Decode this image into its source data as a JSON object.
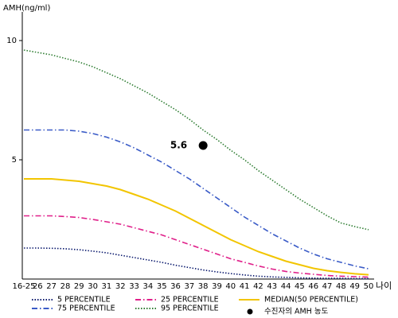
{
  "chart_data": {
    "type": "line",
    "y_label": "AMH(ng/ml)",
    "x_label": "나이",
    "categories": [
      "16-25",
      "26",
      "27",
      "28",
      "29",
      "30",
      "31",
      "32",
      "33",
      "34",
      "35",
      "36",
      "37",
      "38",
      "39",
      "40",
      "41",
      "42",
      "43",
      "44",
      "45",
      "46",
      "47",
      "48",
      "49",
      "50"
    ],
    "ylim": [
      0,
      11.2
    ],
    "yticks": [
      5,
      10
    ],
    "series": [
      {
        "name": "5 PERCENTILE",
        "color": "#0b1a6e",
        "dash": "dotted",
        "values": [
          1.3,
          1.3,
          1.29,
          1.27,
          1.23,
          1.17,
          1.1,
          1.0,
          0.9,
          0.8,
          0.7,
          0.58,
          0.48,
          0.38,
          0.3,
          0.23,
          0.17,
          0.12,
          0.09,
          0.07,
          0.05,
          0.04,
          0.03,
          0.03,
          0.02,
          0.02
        ]
      },
      {
        "name": "75 PERCENTILE",
        "color": "#3a5bc7",
        "dash": "dashdot",
        "values": [
          6.25,
          6.25,
          6.25,
          6.25,
          6.2,
          6.1,
          5.95,
          5.75,
          5.5,
          5.2,
          4.9,
          4.55,
          4.2,
          3.8,
          3.4,
          3.0,
          2.6,
          2.25,
          1.9,
          1.6,
          1.3,
          1.05,
          0.85,
          0.7,
          0.55,
          0.43
        ]
      },
      {
        "name": "25 PERCENTILE",
        "color": "#e0208a",
        "dash": "dashdot",
        "values": [
          2.65,
          2.65,
          2.65,
          2.62,
          2.58,
          2.5,
          2.4,
          2.3,
          2.15,
          2.0,
          1.85,
          1.65,
          1.45,
          1.25,
          1.05,
          0.85,
          0.7,
          0.55,
          0.42,
          0.32,
          0.25,
          0.2,
          0.15,
          0.12,
          0.1,
          0.08
        ]
      },
      {
        "name": "95 PERCENTILE",
        "color": "#2e7d32",
        "dash": "dotted",
        "values": [
          9.6,
          9.5,
          9.4,
          9.25,
          9.1,
          8.9,
          8.65,
          8.4,
          8.1,
          7.8,
          7.45,
          7.1,
          6.7,
          6.25,
          5.85,
          5.4,
          5.0,
          4.55,
          4.15,
          3.75,
          3.35,
          3.0,
          2.65,
          2.35,
          2.2,
          2.07
        ]
      },
      {
        "name": "MEDIAN(50 PERCENTILE)",
        "color": "#f2c500",
        "dash": "solid",
        "values": [
          4.2,
          4.2,
          4.2,
          4.15,
          4.1,
          4.0,
          3.9,
          3.75,
          3.55,
          3.35,
          3.1,
          2.85,
          2.55,
          2.25,
          1.95,
          1.65,
          1.4,
          1.15,
          0.95,
          0.75,
          0.6,
          0.45,
          0.35,
          0.28,
          0.22,
          0.18
        ]
      },
      {
        "name": "수진자의 AMH 농도",
        "color": "#000000",
        "dash": "marker",
        "values": [
          null,
          null,
          null,
          null,
          null,
          null,
          null,
          null,
          null,
          null,
          null,
          null,
          null,
          5.6,
          null,
          null,
          null,
          null,
          null,
          null,
          null,
          null,
          null,
          null,
          null,
          null
        ]
      }
    ]
  }
}
